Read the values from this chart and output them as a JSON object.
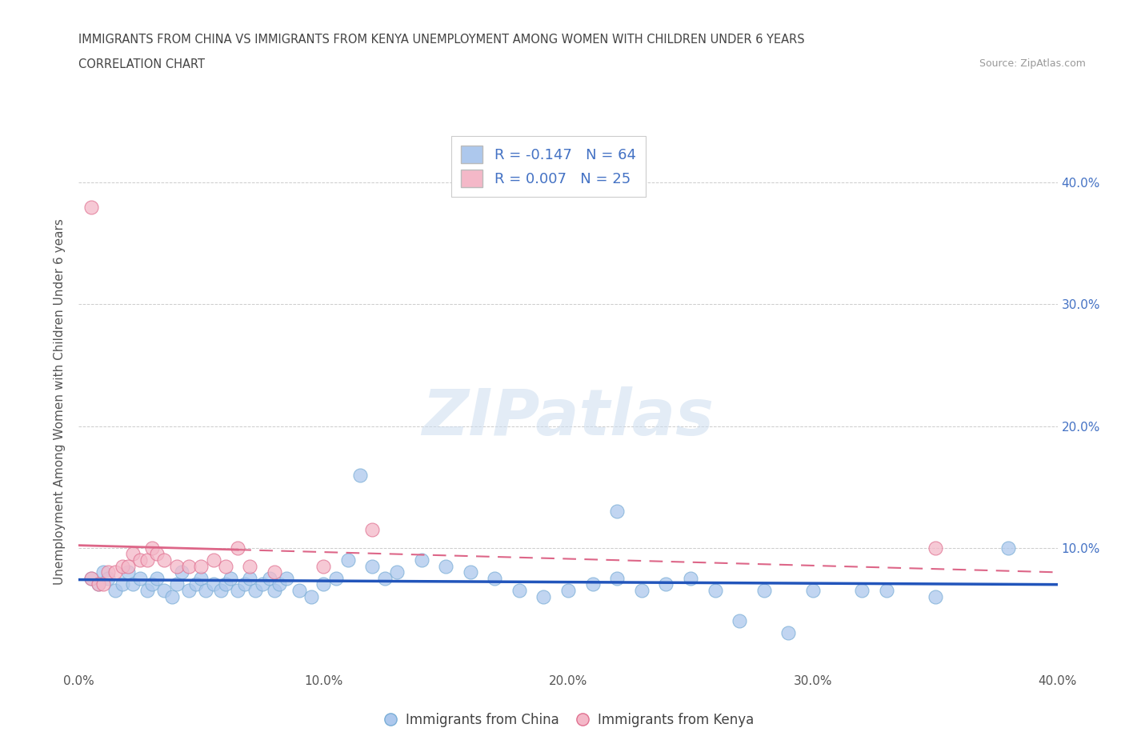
{
  "title_line1": "IMMIGRANTS FROM CHINA VS IMMIGRANTS FROM KENYA UNEMPLOYMENT AMONG WOMEN WITH CHILDREN UNDER 6 YEARS",
  "title_line2": "CORRELATION CHART",
  "source": "Source: ZipAtlas.com",
  "ylabel": "Unemployment Among Women with Children Under 6 years",
  "xlim": [
    0.0,
    0.4
  ],
  "ylim": [
    0.0,
    0.44
  ],
  "ytick_values": [
    0.0,
    0.1,
    0.2,
    0.3,
    0.4
  ],
  "ytick_labels_right": [
    "",
    "10.0%",
    "20.0%",
    "30.0%",
    "40.0%"
  ],
  "xtick_values": [
    0.0,
    0.1,
    0.2,
    0.3,
    0.4
  ],
  "xtick_labels": [
    "0.0%",
    "10.0%",
    "20.0%",
    "30.0%",
    "40.0%"
  ],
  "china_color": "#adc8ed",
  "china_edge": "#7aaed6",
  "kenya_color": "#f4b8c8",
  "kenya_edge": "#e07090",
  "trendline_china_color": "#2255bb",
  "trendline_kenya_color": "#dd6688",
  "R_china": -0.147,
  "N_china": 64,
  "R_kenya": 0.007,
  "N_kenya": 25,
  "watermark": "ZIPatlas",
  "china_x": [
    0.005,
    0.008,
    0.01,
    0.012,
    0.015,
    0.018,
    0.02,
    0.022,
    0.025,
    0.028,
    0.03,
    0.032,
    0.035,
    0.038,
    0.04,
    0.042,
    0.045,
    0.048,
    0.05,
    0.052,
    0.055,
    0.058,
    0.06,
    0.062,
    0.065,
    0.068,
    0.07,
    0.072,
    0.075,
    0.078,
    0.08,
    0.082,
    0.085,
    0.09,
    0.095,
    0.1,
    0.105,
    0.11,
    0.115,
    0.12,
    0.125,
    0.13,
    0.14,
    0.15,
    0.16,
    0.17,
    0.18,
    0.19,
    0.2,
    0.21,
    0.22,
    0.23,
    0.24,
    0.25,
    0.26,
    0.27,
    0.28,
    0.29,
    0.3,
    0.32,
    0.33,
    0.35,
    0.38,
    0.22
  ],
  "china_y": [
    0.075,
    0.07,
    0.08,
    0.075,
    0.065,
    0.07,
    0.08,
    0.07,
    0.075,
    0.065,
    0.07,
    0.075,
    0.065,
    0.06,
    0.07,
    0.08,
    0.065,
    0.07,
    0.075,
    0.065,
    0.07,
    0.065,
    0.07,
    0.075,
    0.065,
    0.07,
    0.075,
    0.065,
    0.07,
    0.075,
    0.065,
    0.07,
    0.075,
    0.065,
    0.06,
    0.07,
    0.075,
    0.09,
    0.16,
    0.085,
    0.075,
    0.08,
    0.09,
    0.085,
    0.08,
    0.075,
    0.065,
    0.06,
    0.065,
    0.07,
    0.075,
    0.065,
    0.07,
    0.075,
    0.065,
    0.04,
    0.065,
    0.03,
    0.065,
    0.065,
    0.065,
    0.06,
    0.1,
    0.13
  ],
  "kenya_x": [
    0.005,
    0.008,
    0.01,
    0.012,
    0.015,
    0.018,
    0.02,
    0.022,
    0.025,
    0.028,
    0.03,
    0.032,
    0.035,
    0.04,
    0.045,
    0.05,
    0.055,
    0.06,
    0.065,
    0.07,
    0.08,
    0.1,
    0.12,
    0.35,
    0.005
  ],
  "kenya_y": [
    0.075,
    0.07,
    0.07,
    0.08,
    0.08,
    0.085,
    0.085,
    0.095,
    0.09,
    0.09,
    0.1,
    0.095,
    0.09,
    0.085,
    0.085,
    0.085,
    0.09,
    0.085,
    0.1,
    0.085,
    0.08,
    0.085,
    0.115,
    0.1,
    0.38
  ]
}
